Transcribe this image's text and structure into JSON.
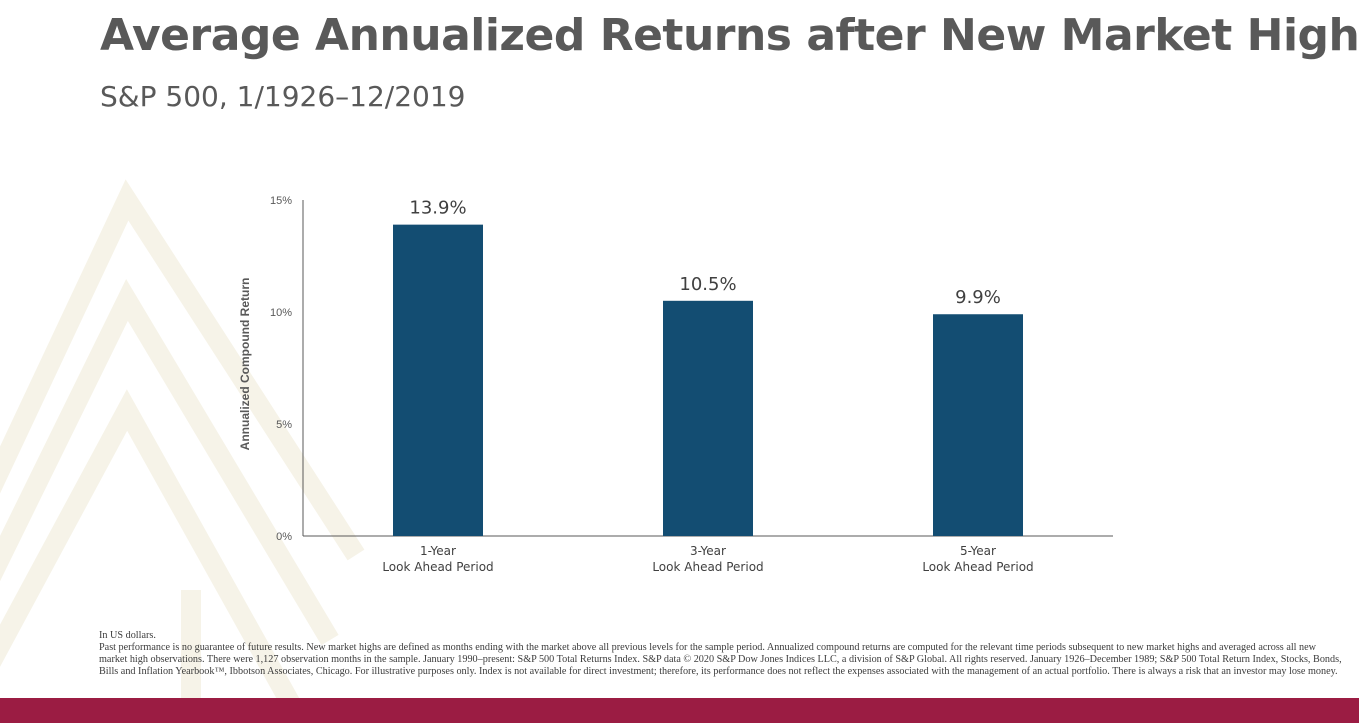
{
  "title": "Average Annualized Returns after New Market Highs",
  "subtitle": "S&P 500, 1/1926–12/2019",
  "colors": {
    "bar": "#134d72",
    "text_dark": "#595959",
    "footer_bar": "#9b1c43",
    "watermark": "#f6f3e8"
  },
  "chart_data": {
    "type": "bar",
    "categories": [
      [
        "1-Year",
        "Look Ahead Period"
      ],
      [
        "3-Year",
        "Look Ahead Period"
      ],
      [
        "5-Year",
        "Look Ahead Period"
      ]
    ],
    "values": [
      13.9,
      10.5,
      9.9
    ],
    "data_labels": [
      "13.9%",
      "10.5%",
      "9.9%"
    ],
    "ylabel": "Annualized Compound Return",
    "xlabel": "",
    "ylim": [
      0,
      15
    ],
    "yticks": [
      0,
      5,
      10,
      15
    ],
    "ytick_labels": [
      "0%",
      "5%",
      "10%",
      "15%"
    ],
    "grid": false,
    "legend": "none"
  },
  "footnotes": {
    "line1": "In US dollars.",
    "line2": "Past performance is no guarantee of future results. New market highs are defined as months ending with the market above all previous levels for the sample period. Annualized compound returns are computed for the relevant time periods subsequent to new market highs and averaged across all new market high observations. There were 1,127 observation months in the sample. January 1990–present: S&P 500 Total Returns Index. S&P data © 2020 S&P Dow Jones Indices LLC, a division of S&P Global. All rights reserved. January 1926–December 1989; S&P 500 Total Return Index, Stocks, Bonds, Bills and Inflation Yearbook™, Ibbotson Associates, Chicago. For illustrative purposes only. Index is not available for direct investment; therefore, its performance does not reflect the expenses associated with the management of an actual portfolio. There is always a risk that an investor may lose money."
  }
}
